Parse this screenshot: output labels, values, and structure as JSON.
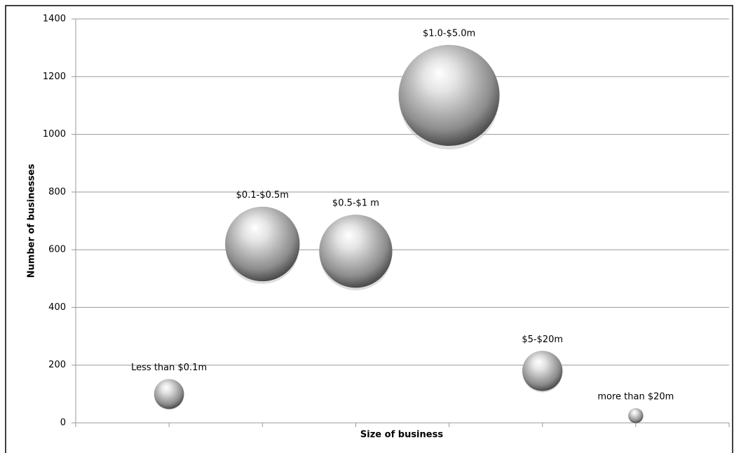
{
  "chart_data": {
    "type": "bubble",
    "x_label": "Size of business",
    "y_label": "Number of businesses",
    "x": [
      1,
      2,
      3,
      4,
      5,
      6
    ],
    "labels": [
      "Less than $0.1m",
      "$0.1-$0.5m",
      "$0.5-$1 m",
      "$1.0-$5.0m",
      "$5-$20m",
      "more than $20m"
    ],
    "values": [
      100,
      620,
      595,
      1135,
      180,
      25
    ],
    "color": "#8c8c8c",
    "xlim": [
      0,
      7
    ],
    "xticks": [
      0,
      1,
      2,
      3,
      4,
      5,
      6,
      7
    ],
    "ylim": [
      0,
      1400
    ],
    "yticks": [
      0,
      200,
      400,
      600,
      800,
      1000,
      1200,
      1400
    ],
    "grid": true
  }
}
